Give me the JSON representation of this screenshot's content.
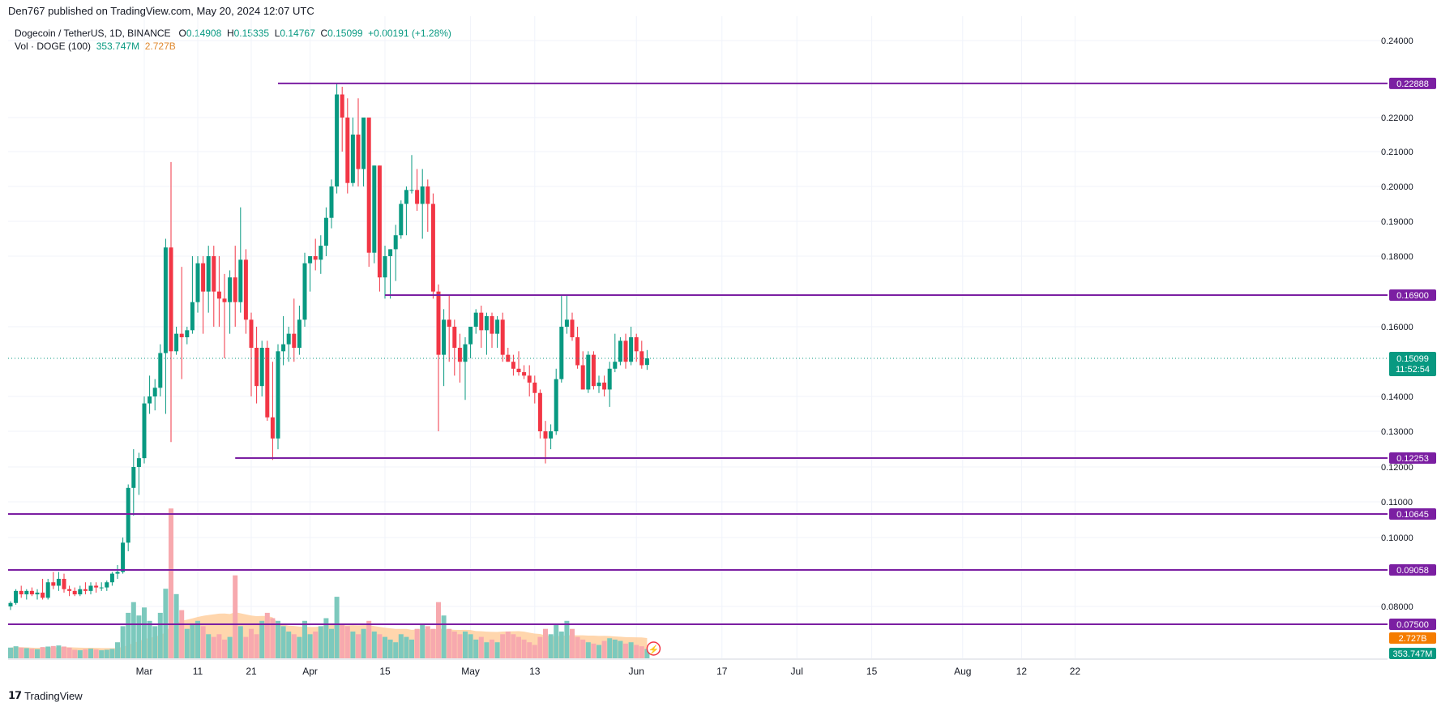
{
  "header": {
    "publisher": "Den767 published on TradingView.com, May 20, 2024 12:07 UTC",
    "symbol": "Dogecoin / TetherUS, 1D, BINANCE",
    "ohlc": {
      "open_label": "O",
      "open": "0.14908",
      "high_label": "H",
      "high": "0.15335",
      "low_label": "L",
      "low": "0.14767",
      "close_label": "C",
      "close": "0.15099",
      "change": "+0.00191 (+1.28%)"
    },
    "volume_label": "Vol · DOGE (100)",
    "volume_value": "353.747M",
    "volume_ma": "2.727B"
  },
  "footer": {
    "brand": "TradingView"
  },
  "colors": {
    "up": "#089981",
    "down": "#f23645",
    "up_vol": "#7cc9bd",
    "down_vol": "#f7a9ae",
    "level_line": "#7b1fa2",
    "vol_ma_fill": "#ffcc99",
    "grid": "#f0f3fa",
    "axis_text": "#131722"
  },
  "chart_data": {
    "type": "candlestick",
    "title": "Dogecoin / TetherUS, 1D, BINANCE",
    "price_axis": {
      "ylim": [
        0.07,
        0.245
      ],
      "ticks": [
        "0.24000",
        "0.22000",
        "0.21000",
        "0.20000",
        "0.19000",
        "0.18000",
        "0.16000",
        "0.14000",
        "0.13000",
        "0.12000",
        "0.11000",
        "0.10000",
        "0.08000"
      ]
    },
    "time_axis": {
      "labels": [
        "Mar",
        "11",
        "21",
        "Apr",
        "15",
        "May",
        "13",
        "Jun",
        "17",
        "Jul",
        "15",
        "Aug",
        "12",
        "22"
      ]
    },
    "horizontal_levels": [
      {
        "value": 0.22888,
        "label": "0.22888",
        "from_date": "2024-03-26"
      },
      {
        "value": 0.169,
        "label": "0.16900",
        "from_date": "2024-04-15"
      },
      {
        "value": 0.12253,
        "label": "0.12253",
        "from_date": "2024-03-18"
      },
      {
        "value": 0.10645,
        "label": "0.10645"
      },
      {
        "value": 0.09058,
        "label": "0.09058"
      },
      {
        "value": 0.075,
        "label": "0.07500"
      }
    ],
    "last_price": {
      "label": "0.15099",
      "countdown": "11:52:54"
    },
    "volume_ma_label": "2.727B",
    "volume_label": "353.747M",
    "candles": [
      {
        "d": "2024-02-05",
        "o": 0.08,
        "h": 0.0815,
        "l": 0.079,
        "c": 0.081,
        "v": 40
      },
      {
        "d": "2024-02-06",
        "o": 0.081,
        "h": 0.085,
        "l": 0.0805,
        "c": 0.0845,
        "v": 45
      },
      {
        "d": "2024-02-07",
        "o": 0.0845,
        "h": 0.086,
        "l": 0.0825,
        "c": 0.0835,
        "v": 40
      },
      {
        "d": "2024-02-08",
        "o": 0.0835,
        "h": 0.085,
        "l": 0.082,
        "c": 0.0845,
        "v": 38
      },
      {
        "d": "2024-02-09",
        "o": 0.0845,
        "h": 0.0855,
        "l": 0.083,
        "c": 0.0835,
        "v": 36
      },
      {
        "d": "2024-02-10",
        "o": 0.0835,
        "h": 0.085,
        "l": 0.082,
        "c": 0.084,
        "v": 34
      },
      {
        "d": "2024-02-11",
        "o": 0.084,
        "h": 0.088,
        "l": 0.082,
        "c": 0.0825,
        "v": 42
      },
      {
        "d": "2024-02-12",
        "o": 0.0825,
        "h": 0.088,
        "l": 0.082,
        "c": 0.087,
        "v": 44
      },
      {
        "d": "2024-02-13",
        "o": 0.087,
        "h": 0.09,
        "l": 0.085,
        "c": 0.086,
        "v": 46
      },
      {
        "d": "2024-02-14",
        "o": 0.086,
        "h": 0.09,
        "l": 0.0845,
        "c": 0.088,
        "v": 48
      },
      {
        "d": "2024-02-15",
        "o": 0.088,
        "h": 0.0895,
        "l": 0.084,
        "c": 0.085,
        "v": 44
      },
      {
        "d": "2024-02-16",
        "o": 0.085,
        "h": 0.086,
        "l": 0.083,
        "c": 0.0845,
        "v": 40
      },
      {
        "d": "2024-02-17",
        "o": 0.0845,
        "h": 0.0855,
        "l": 0.083,
        "c": 0.0835,
        "v": 32
      },
      {
        "d": "2024-02-18",
        "o": 0.0835,
        "h": 0.086,
        "l": 0.083,
        "c": 0.085,
        "v": 30
      },
      {
        "d": "2024-02-19",
        "o": 0.085,
        "h": 0.087,
        "l": 0.0835,
        "c": 0.0845,
        "v": 34
      },
      {
        "d": "2024-02-20",
        "o": 0.0845,
        "h": 0.087,
        "l": 0.0835,
        "c": 0.086,
        "v": 36
      },
      {
        "d": "2024-02-21",
        "o": 0.086,
        "h": 0.087,
        "l": 0.084,
        "c": 0.0855,
        "v": 33
      },
      {
        "d": "2024-02-22",
        "o": 0.0855,
        "h": 0.087,
        "l": 0.0845,
        "c": 0.0855,
        "v": 30
      },
      {
        "d": "2024-02-23",
        "o": 0.0855,
        "h": 0.0875,
        "l": 0.0845,
        "c": 0.087,
        "v": 32
      },
      {
        "d": "2024-02-24",
        "o": 0.087,
        "h": 0.09,
        "l": 0.086,
        "c": 0.0895,
        "v": 35
      },
      {
        "d": "2024-02-25",
        "o": 0.0895,
        "h": 0.092,
        "l": 0.088,
        "c": 0.09,
        "v": 60
      },
      {
        "d": "2024-02-26",
        "o": 0.09,
        "h": 0.1,
        "l": 0.0895,
        "c": 0.0985,
        "v": 120
      },
      {
        "d": "2024-02-27",
        "o": 0.0985,
        "h": 0.115,
        "l": 0.096,
        "c": 0.114,
        "v": 170
      },
      {
        "d": "2024-02-28",
        "o": 0.114,
        "h": 0.125,
        "l": 0.106,
        "c": 0.12,
        "v": 210
      },
      {
        "d": "2024-02-29",
        "o": 0.12,
        "h": 0.124,
        "l": 0.112,
        "c": 0.1225,
        "v": 160
      },
      {
        "d": "2024-03-01",
        "o": 0.1225,
        "h": 0.14,
        "l": 0.121,
        "c": 0.138,
        "v": 190
      },
      {
        "d": "2024-03-02",
        "o": 0.138,
        "h": 0.146,
        "l": 0.135,
        "c": 0.14,
        "v": 140
      },
      {
        "d": "2024-03-03",
        "o": 0.14,
        "h": 0.145,
        "l": 0.136,
        "c": 0.1425,
        "v": 120
      },
      {
        "d": "2024-03-04",
        "o": 0.1425,
        "h": 0.155,
        "l": 0.14,
        "c": 0.1525,
        "v": 170
      },
      {
        "d": "2024-03-05",
        "o": 0.1525,
        "h": 0.185,
        "l": 0.135,
        "c": 0.1825,
        "v": 260
      },
      {
        "d": "2024-03-06",
        "o": 0.1825,
        "h": 0.207,
        "l": 0.127,
        "c": 0.153,
        "v": 560
      },
      {
        "d": "2024-03-07",
        "o": 0.153,
        "h": 0.16,
        "l": 0.152,
        "c": 0.158,
        "v": 240
      },
      {
        "d": "2024-03-08",
        "o": 0.158,
        "h": 0.177,
        "l": 0.145,
        "c": 0.157,
        "v": 180
      },
      {
        "d": "2024-03-09",
        "o": 0.157,
        "h": 0.16,
        "l": 0.155,
        "c": 0.159,
        "v": 110
      },
      {
        "d": "2024-03-10",
        "o": 0.159,
        "h": 0.18,
        "l": 0.158,
        "c": 0.167,
        "v": 130
      },
      {
        "d": "2024-03-11",
        "o": 0.167,
        "h": 0.18,
        "l": 0.164,
        "c": 0.178,
        "v": 140
      },
      {
        "d": "2024-03-12",
        "o": 0.178,
        "h": 0.18,
        "l": 0.158,
        "c": 0.17,
        "v": 120
      },
      {
        "d": "2024-03-13",
        "o": 0.17,
        "h": 0.183,
        "l": 0.164,
        "c": 0.18,
        "v": 90
      },
      {
        "d": "2024-03-14",
        "o": 0.18,
        "h": 0.183,
        "l": 0.16,
        "c": 0.17,
        "v": 80
      },
      {
        "d": "2024-03-15",
        "o": 0.17,
        "h": 0.18,
        "l": 0.16,
        "c": 0.168,
        "v": 90
      },
      {
        "d": "2024-03-16",
        "o": 0.168,
        "h": 0.175,
        "l": 0.151,
        "c": 0.167,
        "v": 70
      },
      {
        "d": "2024-03-17",
        "o": 0.167,
        "h": 0.176,
        "l": 0.158,
        "c": 0.174,
        "v": 80
      },
      {
        "d": "2024-03-18",
        "o": 0.174,
        "h": 0.183,
        "l": 0.16,
        "c": 0.167,
        "v": 310
      },
      {
        "d": "2024-03-19",
        "o": 0.167,
        "h": 0.194,
        "l": 0.164,
        "c": 0.179,
        "v": 120
      },
      {
        "d": "2024-03-20",
        "o": 0.179,
        "h": 0.182,
        "l": 0.158,
        "c": 0.162,
        "v": 80
      },
      {
        "d": "2024-03-21",
        "o": 0.162,
        "h": 0.164,
        "l": 0.14,
        "c": 0.154,
        "v": 110
      },
      {
        "d": "2024-03-22",
        "o": 0.154,
        "h": 0.16,
        "l": 0.138,
        "c": 0.143,
        "v": 90
      },
      {
        "d": "2024-03-23",
        "o": 0.143,
        "h": 0.156,
        "l": 0.14,
        "c": 0.154,
        "v": 140
      },
      {
        "d": "2024-03-24",
        "o": 0.154,
        "h": 0.156,
        "l": 0.133,
        "c": 0.134,
        "v": 170
      },
      {
        "d": "2024-03-25",
        "o": 0.134,
        "h": 0.15,
        "l": 0.122,
        "c": 0.128,
        "v": 150
      },
      {
        "d": "2024-03-26",
        "o": 0.128,
        "h": 0.155,
        "l": 0.125,
        "c": 0.153,
        "v": 140
      },
      {
        "d": "2024-03-27",
        "o": 0.153,
        "h": 0.163,
        "l": 0.149,
        "c": 0.155,
        "v": 120
      },
      {
        "d": "2024-03-28",
        "o": 0.155,
        "h": 0.16,
        "l": 0.15,
        "c": 0.158,
        "v": 100
      },
      {
        "d": "2024-03-29",
        "o": 0.158,
        "h": 0.168,
        "l": 0.15,
        "c": 0.154,
        "v": 90
      },
      {
        "d": "2024-03-30",
        "o": 0.154,
        "h": 0.166,
        "l": 0.152,
        "c": 0.162,
        "v": 80
      },
      {
        "d": "2024-03-31",
        "o": 0.162,
        "h": 0.181,
        "l": 0.16,
        "c": 0.178,
        "v": 140
      },
      {
        "d": "2024-04-01",
        "o": 0.178,
        "h": 0.18,
        "l": 0.17,
        "c": 0.18,
        "v": 90
      },
      {
        "d": "2024-04-02",
        "o": 0.18,
        "h": 0.185,
        "l": 0.176,
        "c": 0.179,
        "v": 100
      },
      {
        "d": "2024-04-03",
        "o": 0.179,
        "h": 0.186,
        "l": 0.175,
        "c": 0.183,
        "v": 120
      },
      {
        "d": "2024-04-04",
        "o": 0.183,
        "h": 0.194,
        "l": 0.18,
        "c": 0.191,
        "v": 150
      },
      {
        "d": "2024-04-05",
        "o": 0.191,
        "h": 0.202,
        "l": 0.188,
        "c": 0.2,
        "v": 110
      },
      {
        "d": "2024-04-06",
        "o": 0.2,
        "h": 0.229,
        "l": 0.198,
        "c": 0.226,
        "v": 230
      },
      {
        "d": "2024-04-07",
        "o": 0.226,
        "h": 0.228,
        "l": 0.21,
        "c": 0.22,
        "v": 130
      },
      {
        "d": "2024-04-08",
        "o": 0.22,
        "h": 0.225,
        "l": 0.198,
        "c": 0.201,
        "v": 120
      },
      {
        "d": "2024-04-09",
        "o": 0.201,
        "h": 0.22,
        "l": 0.2,
        "c": 0.215,
        "v": 100
      },
      {
        "d": "2024-04-10",
        "o": 0.215,
        "h": 0.225,
        "l": 0.2,
        "c": 0.205,
        "v": 90
      },
      {
        "d": "2024-04-11",
        "o": 0.205,
        "h": 0.22,
        "l": 0.2,
        "c": 0.22,
        "v": 110
      },
      {
        "d": "2024-04-12",
        "o": 0.22,
        "h": 0.22,
        "l": 0.177,
        "c": 0.181,
        "v": 140
      },
      {
        "d": "2024-04-13",
        "o": 0.181,
        "h": 0.206,
        "l": 0.178,
        "c": 0.206,
        "v": 100
      },
      {
        "d": "2024-04-14",
        "o": 0.206,
        "h": 0.206,
        "l": 0.17,
        "c": 0.174,
        "v": 90
      },
      {
        "d": "2024-04-15",
        "o": 0.174,
        "h": 0.183,
        "l": 0.168,
        "c": 0.18,
        "v": 80
      },
      {
        "d": "2024-04-16",
        "o": 0.18,
        "h": 0.182,
        "l": 0.168,
        "c": 0.182,
        "v": 70
      },
      {
        "d": "2024-04-17",
        "o": 0.182,
        "h": 0.189,
        "l": 0.173,
        "c": 0.186,
        "v": 60
      },
      {
        "d": "2024-04-18",
        "o": 0.186,
        "h": 0.196,
        "l": 0.185,
        "c": 0.195,
        "v": 90
      },
      {
        "d": "2024-04-19",
        "o": 0.195,
        "h": 0.2,
        "l": 0.186,
        "c": 0.199,
        "v": 80
      },
      {
        "d": "2024-04-20",
        "o": 0.199,
        "h": 0.209,
        "l": 0.198,
        "c": 0.199,
        "v": 70
      },
      {
        "d": "2024-04-21",
        "o": 0.199,
        "h": 0.205,
        "l": 0.193,
        "c": 0.195,
        "v": 110
      },
      {
        "d": "2024-04-22",
        "o": 0.195,
        "h": 0.205,
        "l": 0.185,
        "c": 0.2,
        "v": 130
      },
      {
        "d": "2024-04-23",
        "o": 0.2,
        "h": 0.202,
        "l": 0.187,
        "c": 0.195,
        "v": 120
      },
      {
        "d": "2024-04-24",
        "o": 0.195,
        "h": 0.198,
        "l": 0.168,
        "c": 0.17,
        "v": 110
      },
      {
        "d": "2024-04-25",
        "o": 0.17,
        "h": 0.172,
        "l": 0.13,
        "c": 0.152,
        "v": 210
      },
      {
        "d": "2024-04-26",
        "o": 0.152,
        "h": 0.165,
        "l": 0.143,
        "c": 0.162,
        "v": 160
      },
      {
        "d": "2024-04-27",
        "o": 0.162,
        "h": 0.169,
        "l": 0.15,
        "c": 0.16,
        "v": 110
      },
      {
        "d": "2024-04-28",
        "o": 0.16,
        "h": 0.162,
        "l": 0.146,
        "c": 0.154,
        "v": 100
      },
      {
        "d": "2024-04-29",
        "o": 0.154,
        "h": 0.158,
        "l": 0.144,
        "c": 0.15,
        "v": 90
      },
      {
        "d": "2024-04-30",
        "o": 0.15,
        "h": 0.157,
        "l": 0.139,
        "c": 0.155,
        "v": 100
      },
      {
        "d": "2024-05-01",
        "o": 0.155,
        "h": 0.16,
        "l": 0.151,
        "c": 0.16,
        "v": 90
      },
      {
        "d": "2024-05-02",
        "o": 0.16,
        "h": 0.165,
        "l": 0.158,
        "c": 0.164,
        "v": 70
      },
      {
        "d": "2024-05-03",
        "o": 0.164,
        "h": 0.166,
        "l": 0.154,
        "c": 0.159,
        "v": 80
      },
      {
        "d": "2024-05-04",
        "o": 0.159,
        "h": 0.164,
        "l": 0.152,
        "c": 0.163,
        "v": 60
      },
      {
        "d": "2024-05-05",
        "o": 0.163,
        "h": 0.164,
        "l": 0.154,
        "c": 0.158,
        "v": 70
      },
      {
        "d": "2024-05-06",
        "o": 0.158,
        "h": 0.163,
        "l": 0.154,
        "c": 0.162,
        "v": 60
      },
      {
        "d": "2024-05-07",
        "o": 0.162,
        "h": 0.164,
        "l": 0.15,
        "c": 0.152,
        "v": 90
      },
      {
        "d": "2024-05-08",
        "o": 0.152,
        "h": 0.154,
        "l": 0.15,
        "c": 0.15,
        "v": 100
      },
      {
        "d": "2024-05-09",
        "o": 0.15,
        "h": 0.152,
        "l": 0.146,
        "c": 0.148,
        "v": 90
      },
      {
        "d": "2024-05-10",
        "o": 0.148,
        "h": 0.153,
        "l": 0.146,
        "c": 0.147,
        "v": 80
      },
      {
        "d": "2024-05-11",
        "o": 0.147,
        "h": 0.149,
        "l": 0.145,
        "c": 0.146,
        "v": 70
      },
      {
        "d": "2024-05-12",
        "o": 0.146,
        "h": 0.149,
        "l": 0.14,
        "c": 0.144,
        "v": 60
      },
      {
        "d": "2024-05-13",
        "o": 0.144,
        "h": 0.146,
        "l": 0.138,
        "c": 0.141,
        "v": 50
      },
      {
        "d": "2024-05-14",
        "o": 0.141,
        "h": 0.142,
        "l": 0.128,
        "c": 0.13,
        "v": 80
      },
      {
        "d": "2024-05-15",
        "o": 0.13,
        "h": 0.133,
        "l": 0.121,
        "c": 0.128,
        "v": 110
      },
      {
        "d": "2024-05-16",
        "o": 0.128,
        "h": 0.132,
        "l": 0.125,
        "c": 0.13,
        "v": 90
      },
      {
        "d": "2024-05-17",
        "o": 0.13,
        "h": 0.148,
        "l": 0.129,
        "c": 0.145,
        "v": 130
      },
      {
        "d": "2024-05-18",
        "o": 0.145,
        "h": 0.169,
        "l": 0.144,
        "c": 0.16,
        "v": 100
      },
      {
        "d": "2024-05-19",
        "o": 0.16,
        "h": 0.169,
        "l": 0.158,
        "c": 0.162,
        "v": 140
      },
      {
        "d": "2024-05-20",
        "o": 0.162,
        "h": 0.164,
        "l": 0.156,
        "c": 0.157,
        "v": 110
      },
      {
        "d": "2024-05-21",
        "o": 0.157,
        "h": 0.16,
        "l": 0.148,
        "c": 0.149,
        "v": 80
      },
      {
        "d": "2024-05-22",
        "o": 0.149,
        "h": 0.153,
        "l": 0.142,
        "c": 0.142,
        "v": 70
      },
      {
        "d": "2024-05-23",
        "o": 0.142,
        "h": 0.153,
        "l": 0.141,
        "c": 0.152,
        "v": 60
      },
      {
        "d": "2024-05-24",
        "o": 0.152,
        "h": 0.153,
        "l": 0.142,
        "c": 0.143,
        "v": 55
      },
      {
        "d": "2024-05-25",
        "o": 0.143,
        "h": 0.146,
        "l": 0.141,
        "c": 0.144,
        "v": 50
      },
      {
        "d": "2024-05-26",
        "o": 0.144,
        "h": 0.146,
        "l": 0.14,
        "c": 0.142,
        "v": 65
      },
      {
        "d": "2024-05-27",
        "o": 0.142,
        "h": 0.15,
        "l": 0.137,
        "c": 0.148,
        "v": 75
      },
      {
        "d": "2024-05-28",
        "o": 0.148,
        "h": 0.158,
        "l": 0.147,
        "c": 0.15,
        "v": 70
      },
      {
        "d": "2024-05-29",
        "o": 0.15,
        "h": 0.157,
        "l": 0.149,
        "c": 0.156,
        "v": 65
      },
      {
        "d": "2024-05-30",
        "o": 0.156,
        "h": 0.158,
        "l": 0.148,
        "c": 0.15,
        "v": 55
      },
      {
        "d": "2024-05-31",
        "o": 0.15,
        "h": 0.16,
        "l": 0.149,
        "c": 0.157,
        "v": 60
      },
      {
        "d": "2024-06-01",
        "o": 0.157,
        "h": 0.158,
        "l": 0.15,
        "c": 0.153,
        "v": 50
      },
      {
        "d": "2024-06-02",
        "o": 0.153,
        "h": 0.156,
        "l": 0.148,
        "c": 0.149,
        "v": 45
      },
      {
        "d": "2024-06-03",
        "o": 0.14908,
        "h": 0.15335,
        "l": 0.14767,
        "c": 0.15099,
        "v": 35
      }
    ]
  }
}
